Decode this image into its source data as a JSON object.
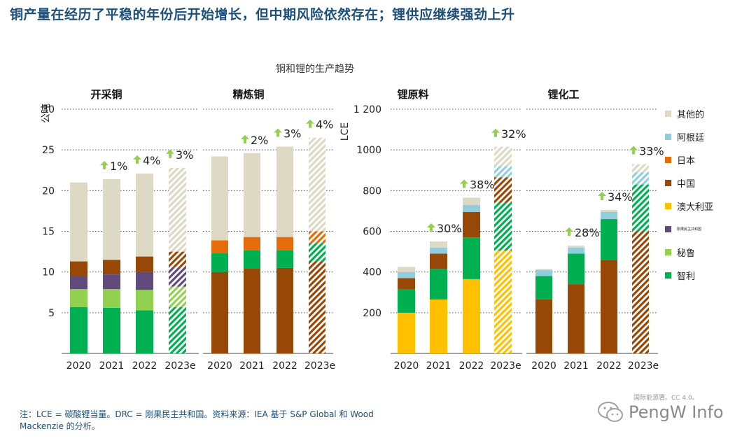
{
  "headline": "铜产量在经历了平稳的年份后开始增长，但中期风险依然存在；锂供应继续强劲上升",
  "subtitle": "铜和锂的生产趋势",
  "footnote": "注：LCE = 碳酸锂当量。DRC = 刚果民主共和国。资料来源：IEA 基于 S&P Global 和 Wood Mackenzie 的分析。",
  "credit": "国际能源署。CC 4.0。",
  "watermark": "PengW Info",
  "colors": {
    "其他的": "#ddd9c4",
    "阿根廷": "#92cddc",
    "日本": "#e46c0a",
    "中国": "#974706",
    "澳大利亚": "#ffc000",
    "刚果民主共和国": "#604a7b",
    "秘鲁": "#92d050",
    "智利": "#00b050",
    "arrow": "#92d050"
  },
  "legend": [
    {
      "key": "其他的",
      "label": "其他的"
    },
    {
      "key": "阿根廷",
      "label": "阿根廷"
    },
    {
      "key": "日本",
      "label": "日本"
    },
    {
      "key": "中国",
      "label": "中国"
    },
    {
      "key": "澳大利亚",
      "label": "澳大利亚"
    },
    {
      "key": "刚果民主共和国",
      "label": "刚果民主共和国",
      "tiny": true
    },
    {
      "key": "秘鲁",
      "label": "秘鲁"
    },
    {
      "key": "智利",
      "label": "智利"
    }
  ],
  "chart_data": [
    {
      "type": "bar",
      "stacked": true,
      "title": "开采铜",
      "ylabel": "公吨",
      "ylim": [
        0,
        30
      ],
      "yticks": [
        5,
        10,
        15,
        20,
        25,
        30
      ],
      "categories": [
        "2020",
        "2021",
        "2022",
        "2023e"
      ],
      "estimated": [
        false,
        false,
        false,
        true
      ],
      "series": [
        {
          "name": "智利",
          "values": [
            5.7,
            5.6,
            5.3,
            5.7
          ]
        },
        {
          "name": "秘鲁",
          "values": [
            2.2,
            2.3,
            2.5,
            2.5
          ]
        },
        {
          "name": "刚果民主共和国",
          "values": [
            1.6,
            1.8,
            2.2,
            2.4
          ]
        },
        {
          "name": "中国",
          "values": [
            1.8,
            1.8,
            1.9,
            1.9
          ]
        },
        {
          "name": "其他的",
          "values": [
            9.7,
            9.9,
            10.2,
            10.3
          ]
        }
      ],
      "growth": [
        "",
        "1%",
        "4%",
        "3%"
      ]
    },
    {
      "type": "bar",
      "stacked": true,
      "title": "精炼铜",
      "ylim": [
        0,
        30
      ],
      "categories": [
        "2020",
        "2021",
        "2022",
        "2023e"
      ],
      "estimated": [
        false,
        false,
        false,
        true
      ],
      "series": [
        {
          "name": "中国",
          "values": [
            10.0,
            10.4,
            10.5,
            11.3
          ]
        },
        {
          "name": "智利",
          "values": [
            2.3,
            2.3,
            2.2,
            2.2
          ]
        },
        {
          "name": "日本",
          "values": [
            1.6,
            1.6,
            1.6,
            1.5
          ]
        },
        {
          "name": "其他的",
          "values": [
            10.3,
            10.3,
            11.1,
            11.5
          ]
        }
      ],
      "growth": [
        "",
        "2%",
        "3%",
        "4%"
      ]
    },
    {
      "type": "bar",
      "stacked": true,
      "title": "锂原料",
      "ylabel": "LCE",
      "ylim": [
        0,
        1200
      ],
      "yticks": [
        200,
        400,
        600,
        800,
        1000,
        1200
      ],
      "ytick_labels": [
        "200",
        "400",
        "600",
        "800",
        "1000",
        "1 200"
      ],
      "categories": [
        "2020",
        "2021",
        "2022",
        "2023e"
      ],
      "estimated": [
        false,
        false,
        false,
        true
      ],
      "series": [
        {
          "name": "澳大利亚",
          "values": [
            200,
            265,
            365,
            505
          ]
        },
        {
          "name": "智利",
          "values": [
            115,
            150,
            205,
            235
          ]
        },
        {
          "name": "中国",
          "values": [
            55,
            75,
            125,
            125
          ]
        },
        {
          "name": "阿根廷",
          "values": [
            30,
            30,
            35,
            55
          ]
        },
        {
          "name": "其他的",
          "values": [
            25,
            30,
            35,
            95
          ]
        }
      ],
      "growth": [
        "",
        "30%",
        "38%",
        "32%"
      ]
    },
    {
      "type": "bar",
      "stacked": true,
      "title": "锂化工",
      "ylim": [
        0,
        1200
      ],
      "categories": [
        "2020",
        "2021",
        "2022",
        "2023e"
      ],
      "estimated": [
        false,
        false,
        false,
        true
      ],
      "series": [
        {
          "name": "中国",
          "values": [
            265,
            340,
            460,
            600
          ]
        },
        {
          "name": "智利",
          "values": [
            115,
            150,
            200,
            230
          ]
        },
        {
          "name": "阿根廷",
          "values": [
            30,
            30,
            35,
            60
          ]
        },
        {
          "name": "其他的",
          "values": [
            5,
            10,
            10,
            40
          ]
        }
      ],
      "growth": [
        "",
        "28%",
        "34%",
        "33%"
      ]
    }
  ]
}
